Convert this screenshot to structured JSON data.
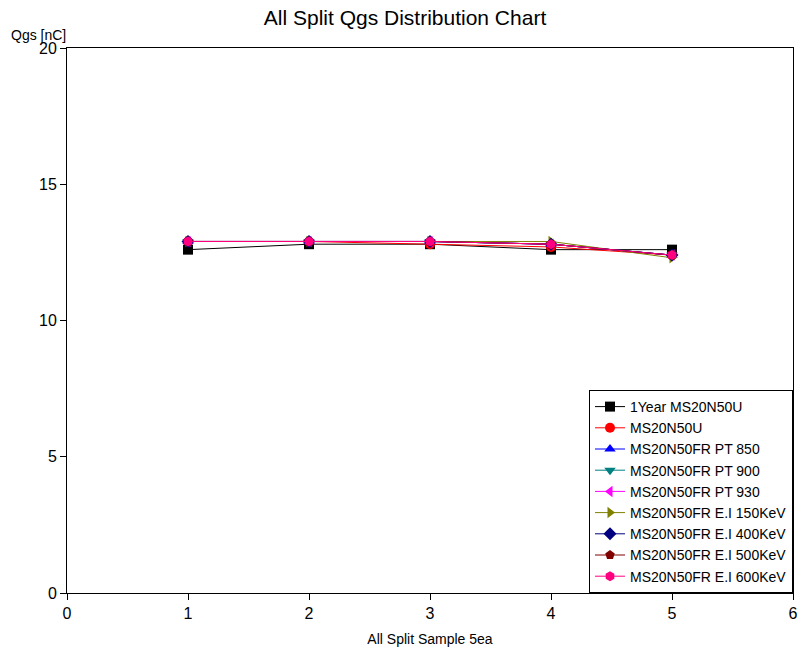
{
  "chart_data": {
    "type": "line",
    "title": "All Split Qgs Distribution Chart",
    "x_label": "All Split Sample 5ea",
    "y_label": "Qgs [nC]",
    "x": [
      1,
      2,
      3,
      4,
      5
    ],
    "xlim": [
      0,
      6
    ],
    "xticks": [
      0,
      1,
      2,
      3,
      4,
      5,
      6
    ],
    "ylim": [
      0,
      20
    ],
    "yticks": [
      0,
      5,
      10,
      15,
      20
    ],
    "grid": false,
    "legend": "lower right",
    "series": [
      {
        "name": "1Year MS20N50U",
        "color": "#000000",
        "marker": "square",
        "line_style": "solid",
        "values": [
          12.6,
          12.8,
          12.8,
          12.6,
          12.6
        ]
      },
      {
        "name": "MS20N50U",
        "color": "#ff0000",
        "marker": "circle",
        "line_style": "solid",
        "values": [
          12.9,
          12.9,
          12.8,
          12.7,
          12.4
        ]
      },
      {
        "name": "MS20N50FR PT 850",
        "color": "#0000ff",
        "marker": "triangle-up",
        "line_style": "solid",
        "values": [
          12.9,
          12.9,
          12.9,
          12.8,
          12.4
        ]
      },
      {
        "name": "MS20N50FR PT 900",
        "color": "#008080",
        "marker": "triangle-down",
        "line_style": "solid",
        "values": [
          12.9,
          12.9,
          12.9,
          12.8,
          12.4
        ]
      },
      {
        "name": "MS20N50FR PT 930",
        "color": "#ff00ff",
        "marker": "triangle-left",
        "line_style": "solid",
        "values": [
          12.9,
          12.9,
          12.9,
          12.8,
          12.4
        ]
      },
      {
        "name": "MS20N50FR E.I 150KeV",
        "color": "#808000",
        "marker": "triangle-right",
        "line_style": "solid",
        "values": [
          12.9,
          12.9,
          12.9,
          12.9,
          12.3
        ]
      },
      {
        "name": "MS20N50FR E.I 400KeV",
        "color": "#000080",
        "marker": "diamond",
        "line_style": "solid",
        "values": [
          12.9,
          12.9,
          12.9,
          12.8,
          12.4
        ]
      },
      {
        "name": "MS20N50FR E.I 500KeV",
        "color": "#800000",
        "marker": "pentagon",
        "line_style": "solid",
        "values": [
          12.9,
          12.9,
          12.9,
          12.8,
          12.4
        ]
      },
      {
        "name": "MS20N50FR E.I 600KeV",
        "color": "#ff0080",
        "marker": "hexagon",
        "line_style": "solid",
        "values": [
          12.9,
          12.9,
          12.9,
          12.8,
          12.4
        ]
      }
    ]
  }
}
